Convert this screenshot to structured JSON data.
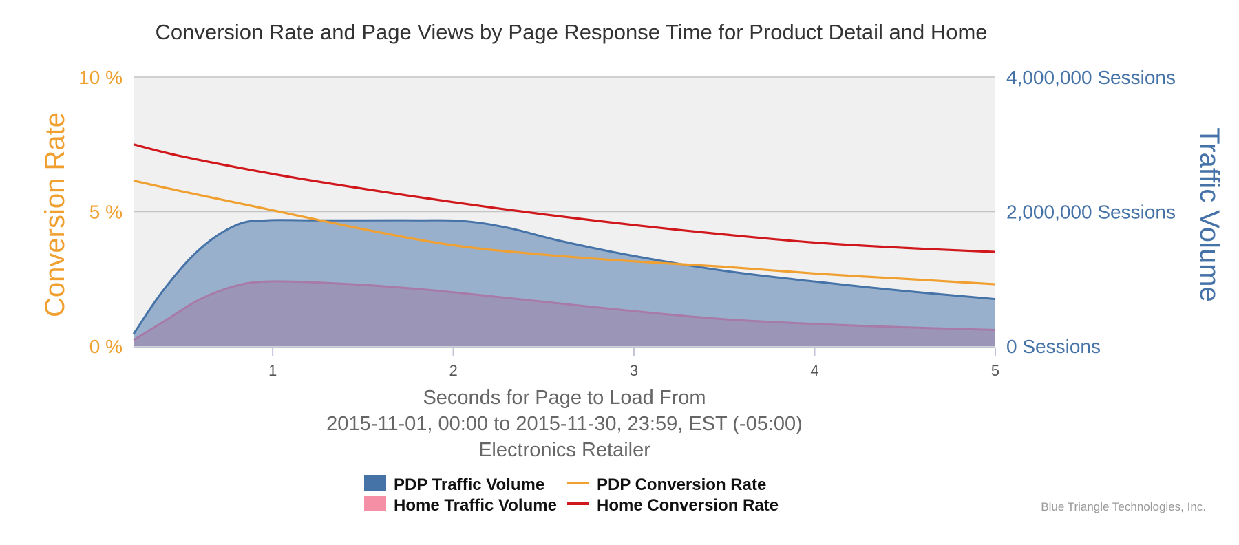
{
  "chart_data": {
    "type": "area",
    "title": "Conversion Rate and Page Views by Page Response Time for Product Detail and Home",
    "xlabel_lines": [
      "Seconds for Page to Load From",
      "2015-11-01, 00:00 to 2015-11-30, 23:59, EST (-05:00)",
      "Electronics Retailer"
    ],
    "ylabel_left": "Conversion Rate",
    "ylabel_right": "Traffic Volume",
    "xlim": [
      0.23,
      5
    ],
    "ylim_left": [
      0,
      10
    ],
    "ylim_right": [
      0,
      4000000
    ],
    "x_ticks": [
      1,
      2,
      3,
      4,
      5
    ],
    "y_ticks_left": [
      {
        "value": 0,
        "label": "0 %"
      },
      {
        "value": 5,
        "label": "5 %"
      },
      {
        "value": 10,
        "label": "10 %"
      }
    ],
    "y_ticks_right": [
      {
        "value": 0,
        "label": "0 Sessions"
      },
      {
        "value": 2000000,
        "label": "2,000,000 Sessions"
      },
      {
        "value": 4000000,
        "label": "4,000,000 Sessions"
      }
    ],
    "grid": true,
    "legend_position": "bottom",
    "series": [
      {
        "name": "PDP Traffic Volume",
        "kind": "area",
        "axis": "right",
        "color": "#4572a7",
        "fill": "#98b0cc",
        "x": [
          0.23,
          0.4,
          0.6,
          0.8,
          0.97,
          1.2,
          1.5,
          1.8,
          2.05,
          2.3,
          2.6,
          3.0,
          3.5,
          4.0,
          4.5,
          5.0
        ],
        "y": [
          180000,
          850000,
          1450000,
          1800000,
          1870000,
          1870000,
          1870000,
          1870000,
          1860000,
          1760000,
          1560000,
          1340000,
          1120000,
          960000,
          820000,
          700000
        ]
      },
      {
        "name": "Home Traffic Volume",
        "kind": "area",
        "axis": "right",
        "color": "#a87aa8",
        "fill": "#9b96b8",
        "x": [
          0.23,
          0.4,
          0.6,
          0.8,
          0.97,
          1.2,
          1.5,
          1.8,
          2.0,
          2.5,
          3.0,
          3.5,
          4.0,
          4.5,
          5.0
        ],
        "y": [
          90000,
          370000,
          700000,
          900000,
          960000,
          950000,
          910000,
          850000,
          800000,
          660000,
          520000,
          400000,
          330000,
          280000,
          240000
        ]
      },
      {
        "name": "PDP Conversion Rate",
        "kind": "line",
        "axis": "left",
        "color": "#f0a030",
        "x": [
          0.23,
          0.5,
          1.0,
          1.5,
          2.0,
          2.5,
          3.0,
          3.5,
          4.0,
          4.5,
          5.0
        ],
        "y": [
          6.15,
          5.75,
          5.05,
          4.35,
          3.75,
          3.4,
          3.15,
          2.95,
          2.7,
          2.5,
          2.3
        ]
      },
      {
        "name": "Home Conversion Rate",
        "kind": "line",
        "axis": "left",
        "color": "#d0171b",
        "x": [
          0.23,
          0.5,
          1.0,
          1.5,
          2.0,
          2.5,
          3.0,
          3.5,
          4.0,
          4.5,
          5.0
        ],
        "y": [
          7.5,
          7.05,
          6.4,
          5.85,
          5.35,
          4.9,
          4.5,
          4.15,
          3.85,
          3.65,
          3.5
        ]
      }
    ],
    "plot_background": "#f0f0f0",
    "credit": "Blue Triangle Technologies, Inc."
  }
}
